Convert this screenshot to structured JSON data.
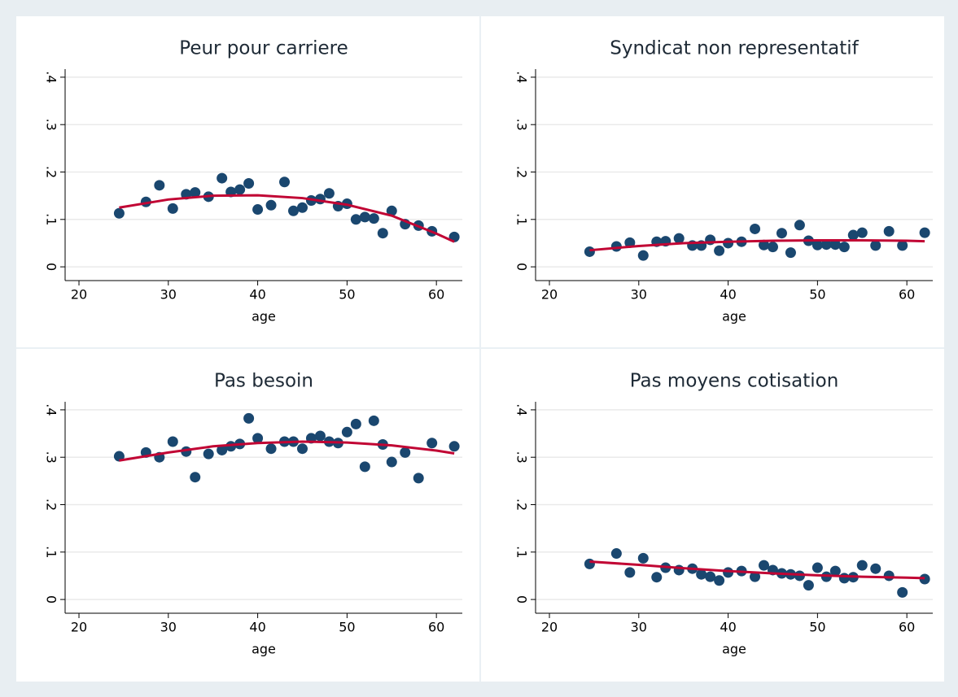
{
  "chart_data": [
    {
      "type": "scatter",
      "title": "Peur pour carriere",
      "xlabel": "age",
      "xlim": [
        18.45,
        62.9
      ],
      "ylim": [
        -0.029,
        0.417
      ],
      "xticks": [
        20,
        30,
        40,
        50,
        60
      ],
      "yticks": [
        0,
        {
          "value": 0.1,
          "label": ".1"
        },
        {
          "value": 0.2,
          "label": ".2"
        },
        {
          "value": 0.3,
          "label": ".3"
        },
        {
          "value": 0.4,
          "label": ".4"
        }
      ],
      "grid": true,
      "series": [
        {
          "type": "scatter",
          "color": "#1a476f",
          "x": [
            24.5,
            27.5,
            29,
            30.5,
            32,
            33,
            34.5,
            36,
            37,
            38,
            39,
            40,
            41.5,
            43,
            44,
            45,
            46,
            47,
            48,
            49,
            50,
            51,
            52,
            53,
            54,
            55,
            56.5,
            58,
            59.5,
            62
          ],
          "values": [
            0.113,
            0.137,
            0.172,
            0.123,
            0.153,
            0.157,
            0.148,
            0.187,
            0.158,
            0.163,
            0.176,
            0.121,
            0.13,
            0.179,
            0.118,
            0.125,
            0.14,
            0.143,
            0.155,
            0.128,
            0.133,
            0.1,
            0.105,
            0.102,
            0.071,
            0.118,
            0.09,
            0.087,
            0.075,
            0.063
          ]
        },
        {
          "type": "line",
          "color": "#c10534",
          "x": [
            24.5,
            30,
            35,
            40,
            45,
            50,
            55,
            60,
            62
          ],
          "values": [
            0.125,
            0.142,
            0.15,
            0.151,
            0.145,
            0.131,
            0.108,
            0.07,
            0.053
          ]
        }
      ]
    },
    {
      "type": "scatter",
      "title": "Syndicat non representatif",
      "xlabel": "age",
      "xlim": [
        18.45,
        62.9
      ],
      "ylim": [
        -0.029,
        0.417
      ],
      "xticks": [
        20,
        30,
        40,
        50,
        60
      ],
      "yticks": [
        0,
        {
          "value": 0.1,
          "label": ".1"
        },
        {
          "value": 0.2,
          "label": ".2"
        },
        {
          "value": 0.3,
          "label": ".3"
        },
        {
          "value": 0.4,
          "label": ".4"
        }
      ],
      "grid": true,
      "series": [
        {
          "type": "scatter",
          "color": "#1a476f",
          "x": [
            24.5,
            27.5,
            29,
            30.5,
            32,
            33,
            34.5,
            36,
            37,
            38,
            39,
            40,
            41.5,
            43,
            44,
            45,
            46,
            47,
            48,
            49,
            50,
            51,
            52,
            53,
            54,
            55,
            56.5,
            58,
            59.5,
            62
          ],
          "values": [
            0.032,
            0.043,
            0.051,
            0.024,
            0.053,
            0.054,
            0.06,
            0.045,
            0.045,
            0.057,
            0.034,
            0.05,
            0.053,
            0.08,
            0.046,
            0.042,
            0.071,
            0.03,
            0.088,
            0.055,
            0.046,
            0.047,
            0.047,
            0.042,
            0.067,
            0.072,
            0.045,
            0.075,
            0.045,
            0.072
          ]
        },
        {
          "type": "line",
          "color": "#c10534",
          "x": [
            24.5,
            30,
            35,
            40,
            45,
            50,
            55,
            60,
            62
          ],
          "values": [
            0.035,
            0.044,
            0.05,
            0.053,
            0.055,
            0.056,
            0.056,
            0.055,
            0.054
          ]
        }
      ]
    },
    {
      "type": "scatter",
      "title": "Pas besoin",
      "xlabel": "age",
      "xlim": [
        18.45,
        62.9
      ],
      "ylim": [
        -0.029,
        0.417
      ],
      "xticks": [
        20,
        30,
        40,
        50,
        60
      ],
      "yticks": [
        0,
        {
          "value": 0.1,
          "label": ".1"
        },
        {
          "value": 0.2,
          "label": ".2"
        },
        {
          "value": 0.3,
          "label": ".3"
        },
        {
          "value": 0.4,
          "label": ".4"
        }
      ],
      "grid": true,
      "series": [
        {
          "type": "scatter",
          "color": "#1a476f",
          "x": [
            24.5,
            27.5,
            29,
            30.5,
            32,
            33,
            34.5,
            36,
            37,
            38,
            39,
            40,
            41.5,
            43,
            44,
            45,
            46,
            47,
            48,
            49,
            50,
            51,
            52,
            53,
            54,
            55,
            56.5,
            58,
            59.5,
            62
          ],
          "values": [
            0.302,
            0.31,
            0.3,
            0.333,
            0.312,
            0.258,
            0.307,
            0.315,
            0.323,
            0.328,
            0.382,
            0.34,
            0.318,
            0.333,
            0.333,
            0.318,
            0.34,
            0.345,
            0.333,
            0.33,
            0.353,
            0.37,
            0.28,
            0.377,
            0.327,
            0.29,
            0.31,
            0.256,
            0.33,
            0.323
          ]
        },
        {
          "type": "line",
          "color": "#c10534",
          "x": [
            24.5,
            30,
            35,
            40,
            45,
            50,
            55,
            60,
            62
          ],
          "values": [
            0.293,
            0.31,
            0.323,
            0.33,
            0.333,
            0.331,
            0.325,
            0.314,
            0.308
          ]
        }
      ]
    },
    {
      "type": "scatter",
      "title": "Pas moyens cotisation",
      "xlabel": "age",
      "xlim": [
        18.45,
        62.9
      ],
      "ylim": [
        -0.029,
        0.417
      ],
      "xticks": [
        20,
        30,
        40,
        50,
        60
      ],
      "yticks": [
        0,
        {
          "value": 0.1,
          "label": ".1"
        },
        {
          "value": 0.2,
          "label": ".2"
        },
        {
          "value": 0.3,
          "label": ".3"
        },
        {
          "value": 0.4,
          "label": ".4"
        }
      ],
      "grid": true,
      "series": [
        {
          "type": "scatter",
          "color": "#1a476f",
          "x": [
            24.5,
            27.5,
            29,
            30.5,
            32,
            33,
            34.5,
            36,
            37,
            38,
            39,
            40,
            41.5,
            43,
            44,
            45,
            46,
            47,
            48,
            49,
            50,
            51,
            52,
            53,
            54,
            55,
            56.5,
            58,
            59.5,
            62
          ],
          "values": [
            0.075,
            0.097,
            0.057,
            0.087,
            0.047,
            0.067,
            0.062,
            0.065,
            0.053,
            0.048,
            0.04,
            0.057,
            0.06,
            0.048,
            0.072,
            0.062,
            0.055,
            0.053,
            0.05,
            0.03,
            0.067,
            0.048,
            0.06,
            0.045,
            0.047,
            0.072,
            0.065,
            0.05,
            0.015,
            0.043
          ]
        },
        {
          "type": "line",
          "color": "#c10534",
          "x": [
            24.5,
            30,
            35,
            40,
            45,
            50,
            55,
            60,
            62
          ],
          "values": [
            0.08,
            0.073,
            0.066,
            0.06,
            0.055,
            0.051,
            0.048,
            0.046,
            0.045
          ]
        }
      ]
    }
  ]
}
